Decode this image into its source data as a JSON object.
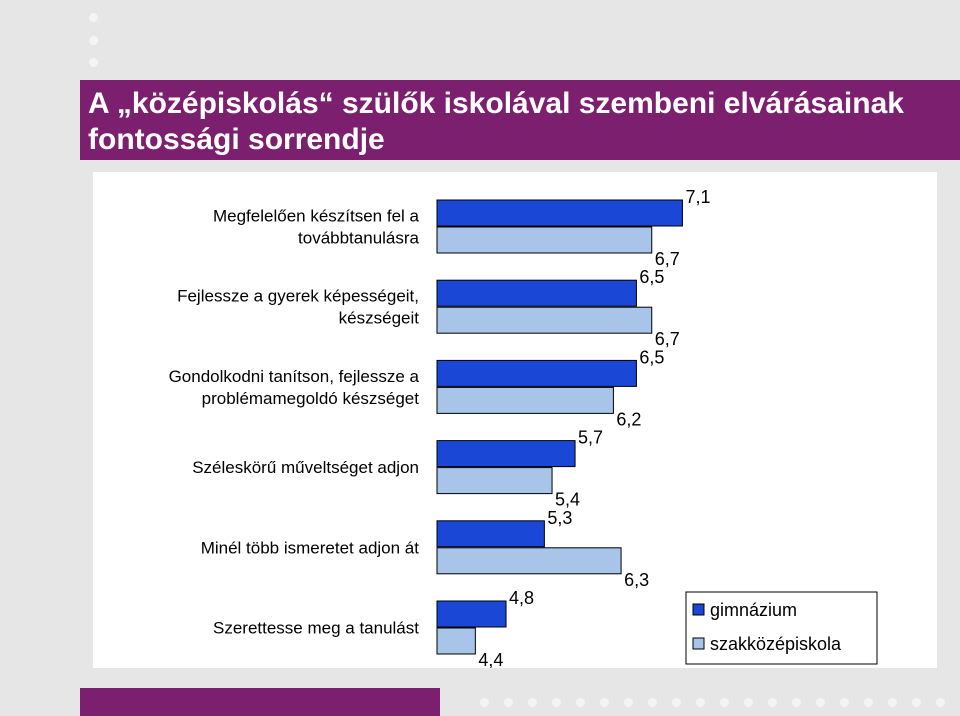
{
  "title": "A „középiskolás“ szülők iskolával szembeni elvárásainak fontossági sorrendje",
  "colors": {
    "background": "#e6e6e6",
    "accent": "#7b1f6e",
    "gimnazium": "#1a47d6",
    "szakkozepiskola": "#a9c4e9"
  },
  "chart_data": {
    "type": "bar",
    "orientation": "horizontal",
    "categories": [
      [
        "Megfelelően készítsen fel a",
        "továbbtanulásra"
      ],
      [
        "Fejlessze a gyerek képességeit,",
        "készségeit"
      ],
      [
        "Gondolkodni tanítson, fejlessze a",
        "problémamegoldó készséget"
      ],
      [
        "Széleskörű műveltséget adjon"
      ],
      [
        "Minél több ismeretet adjon át"
      ],
      [
        "Szerettesse meg a tanulást"
      ]
    ],
    "series": [
      {
        "name": "gimnázium",
        "values": [
          7.1,
          6.5,
          6.5,
          5.7,
          5.3,
          4.8
        ],
        "labels": [
          "7,1",
          "6,5",
          "6,5",
          "5,7",
          "5,3",
          "4,8"
        ]
      },
      {
        "name": "szakközépiskola",
        "values": [
          6.7,
          6.7,
          6.2,
          5.4,
          6.3,
          4.4
        ],
        "labels": [
          "6,7",
          "6,7",
          "6,2",
          "5,4",
          "6,3",
          "4,4"
        ]
      }
    ],
    "legend_position": "bottom-right",
    "grid": false
  }
}
